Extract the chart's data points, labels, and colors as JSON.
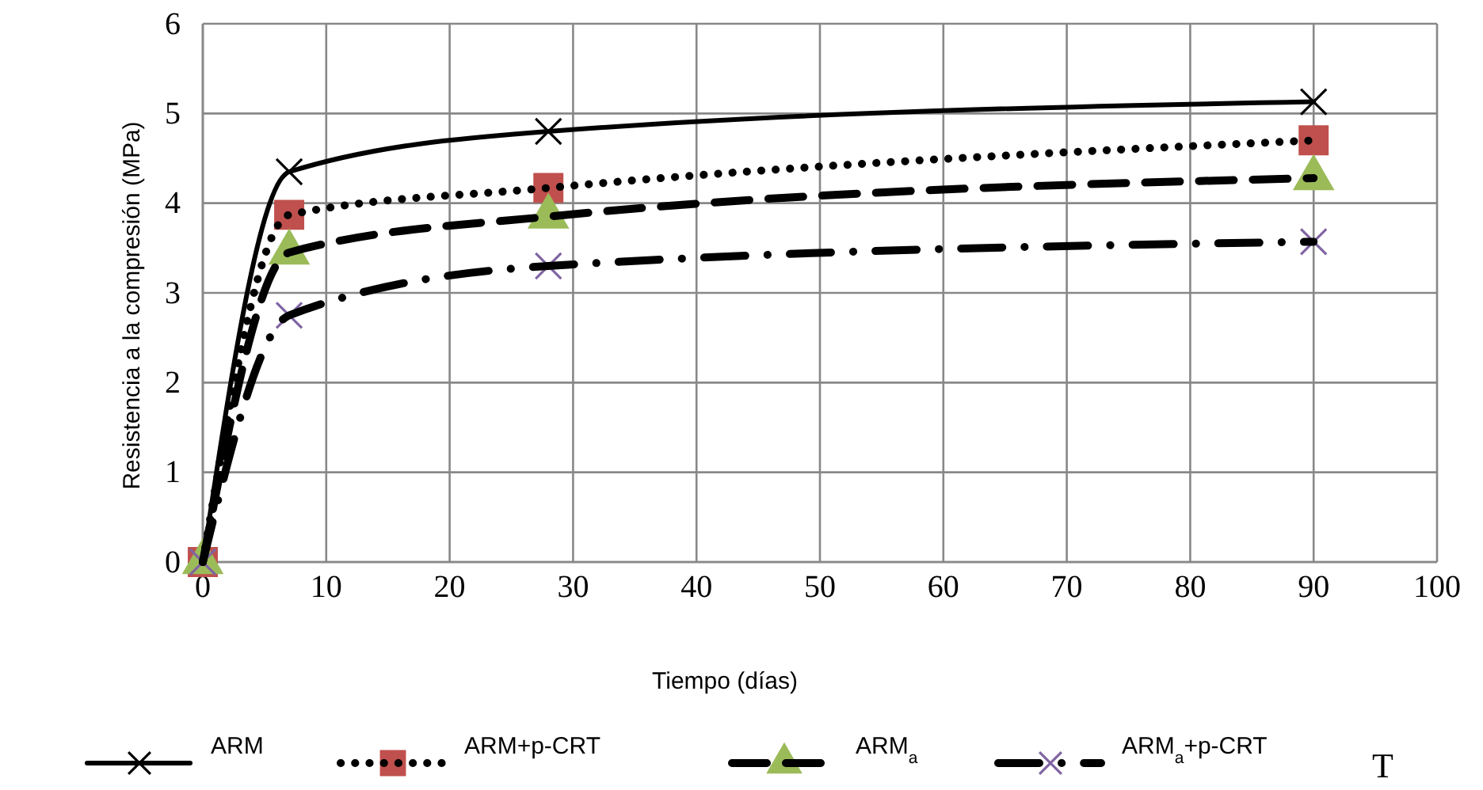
{
  "chart_data": {
    "type": "line",
    "xlabel": "Tiempo (días)",
    "ylabel": "Resistencia a la compresión (MPa)",
    "x": [
      0,
      7,
      28,
      90
    ],
    "series": [
      {
        "name": "ARM",
        "color": "#000000",
        "values": [
          0,
          4.35,
          4.8,
          5.13
        ],
        "marker": "cross",
        "line_style": "solid"
      },
      {
        "name": "ARM+p-CRT",
        "color": "#c0504d",
        "values": [
          0,
          3.87,
          4.17,
          4.7
        ],
        "marker": "square",
        "line_style": "dotted"
      },
      {
        "name": "ARM$_{a}$",
        "color": "#9bbb59",
        "values": [
          0,
          3.45,
          3.85,
          4.28
        ],
        "marker": "triangle",
        "line_style": "dashed"
      },
      {
        "name": "ARM$_{a}$+p-CRT",
        "color": "#8064a2",
        "values": [
          0,
          2.75,
          3.3,
          3.57
        ],
        "marker": "cross",
        "line_style": "dashdot"
      }
    ],
    "xlim": [
      0,
      100
    ],
    "xticks": [
      0,
      10,
      20,
      30,
      40,
      50,
      60,
      70,
      80,
      90,
      100
    ],
    "ylim": [
      0,
      6
    ],
    "yticks": [
      0,
      1,
      2,
      3,
      4,
      5,
      6
    ],
    "grid": true,
    "legend": "bottom",
    "annotations": [
      "T"
    ]
  }
}
